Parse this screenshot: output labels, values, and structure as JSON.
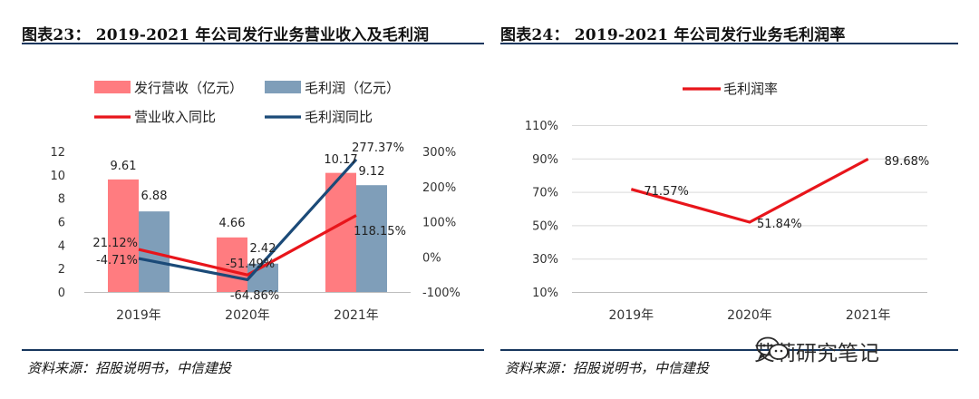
{
  "titles": {
    "left": "图表23： 2019-2021 年公司发行业务营业收入及毛利润",
    "right": "图表24： 2019-2021 年公司发行业务毛利润率"
  },
  "sources": {
    "left": "资料来源：招股说明书，中信建投",
    "right": "资料来源：招股说明书，中信建投"
  },
  "watermark": {
    "text": "艾莉研究笔记",
    "icon": "wechat-icon"
  },
  "colors": {
    "revenue_bar": "#ff7c80",
    "profit_bar": "#7f9eb9",
    "revenue_yoy_line": "#e8151b",
    "profit_yoy_line": "#1b4a78",
    "margin_line": "#e8151b",
    "rule": "#17365d"
  },
  "chart_data": [
    {
      "type": "bar",
      "categories": [
        "2019年",
        "2020年",
        "2021年"
      ],
      "series": [
        {
          "name": "发行营收（亿元）",
          "type": "bar",
          "axis": "left",
          "values": [
            9.61,
            4.66,
            10.17
          ],
          "labels": [
            "9.61",
            "4.66",
            "10.17"
          ]
        },
        {
          "name": "毛利润（亿元）",
          "type": "bar",
          "axis": "left",
          "values": [
            6.88,
            2.42,
            9.12
          ],
          "labels": [
            "6.88",
            "2.42",
            "9.12"
          ]
        },
        {
          "name": "营业收入同比",
          "type": "line",
          "axis": "right",
          "values": [
            21.12,
            -51.49,
            118.15
          ],
          "labels": [
            "21.12%",
            "-51.49%",
            "118.15%"
          ]
        },
        {
          "name": "毛利润同比",
          "type": "line",
          "axis": "right",
          "values": [
            -4.71,
            -64.86,
            277.37
          ],
          "labels": [
            "-4.71%",
            "-64.86%",
            "277.37%"
          ]
        }
      ],
      "y_left": {
        "min": 0,
        "max": 12,
        "ticks": [
          "0",
          "2",
          "4",
          "6",
          "8",
          "10",
          "12"
        ]
      },
      "y_right": {
        "min": -100,
        "max": 300,
        "ticks": [
          "-100%",
          "0%",
          "100%",
          "200%",
          "300%"
        ]
      },
      "grid": false,
      "legend": "top"
    },
    {
      "type": "line",
      "categories": [
        "2019年",
        "2020年",
        "2021年"
      ],
      "series": [
        {
          "name": "毛利润率",
          "values": [
            71.57,
            51.84,
            89.68
          ],
          "labels": [
            "71.57%",
            "51.84%",
            "89.68%"
          ]
        }
      ],
      "y": {
        "min": 10,
        "max": 110,
        "ticks": [
          "10%",
          "30%",
          "50%",
          "70%",
          "90%",
          "110%"
        ]
      },
      "grid": true,
      "legend": "top"
    }
  ]
}
